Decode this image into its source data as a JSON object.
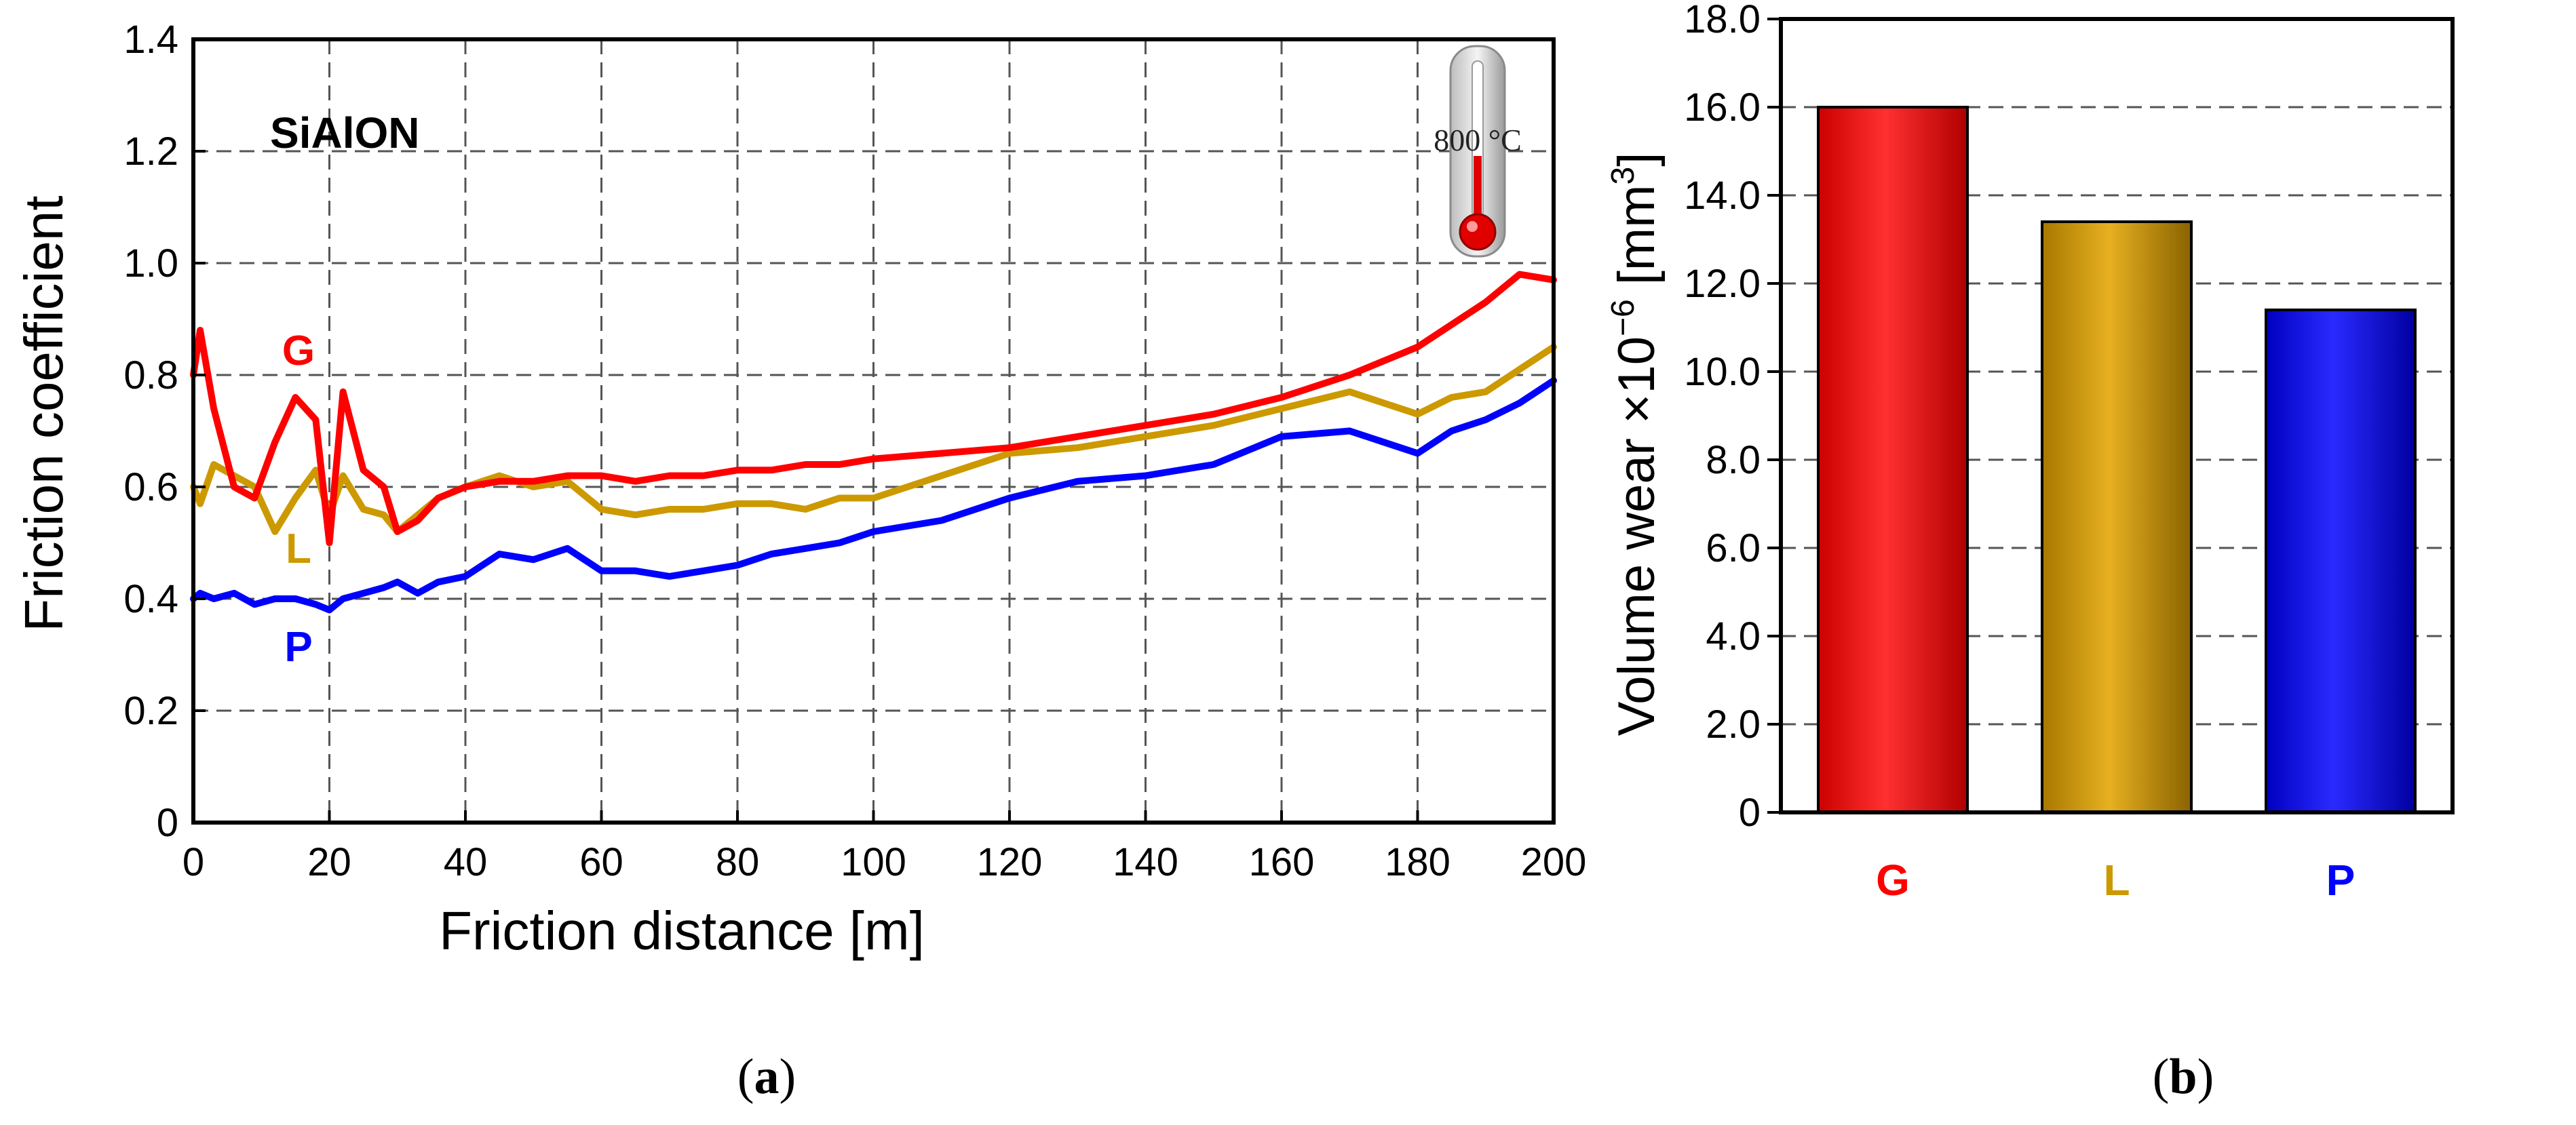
{
  "colors": {
    "G": "#ff0000",
    "L": "#cc9900",
    "P": "#0000ff",
    "axis": "#000000",
    "grid": "#555555"
  },
  "chart_data": [
    {
      "type": "line",
      "panel_label": "(a)",
      "panel_letter": "a",
      "inset_text": "SiAlON",
      "temperature_label": "800 °C",
      "xlabel": "Friction distance [m]",
      "ylabel": "Friction coefficient",
      "xlim": [
        0,
        200
      ],
      "ylim": [
        0,
        1.4
      ],
      "xticks": [
        0,
        20,
        40,
        60,
        80,
        100,
        120,
        140,
        160,
        180,
        200
      ],
      "xtick_labels": [
        "0",
        "20",
        "40",
        "60",
        "80",
        "100",
        "120",
        "140",
        "160",
        "180",
        "200"
      ],
      "yticks": [
        0,
        0.2,
        0.4,
        0.6,
        0.8,
        1.0,
        1.2,
        1.4
      ],
      "ytick_labels": [
        "0",
        "0.2",
        "0.4",
        "0.6",
        "0.8",
        "1.0",
        "1.2",
        "1.4"
      ],
      "grid": true,
      "x": [
        0,
        1,
        3,
        6,
        9,
        12,
        15,
        18,
        20,
        22,
        25,
        28,
        30,
        33,
        36,
        40,
        45,
        50,
        55,
        60,
        65,
        70,
        75,
        80,
        85,
        90,
        95,
        100,
        110,
        120,
        130,
        140,
        150,
        160,
        170,
        180,
        185,
        190,
        195,
        200
      ],
      "series": [
        {
          "name": "G",
          "values": [
            0.8,
            0.88,
            0.74,
            0.6,
            0.58,
            0.68,
            0.76,
            0.72,
            0.5,
            0.77,
            0.63,
            0.6,
            0.52,
            0.54,
            0.58,
            0.6,
            0.61,
            0.61,
            0.62,
            0.62,
            0.61,
            0.62,
            0.62,
            0.63,
            0.63,
            0.64,
            0.64,
            0.65,
            0.66,
            0.67,
            0.69,
            0.71,
            0.73,
            0.76,
            0.8,
            0.85,
            0.89,
            0.93,
            0.98,
            0.97
          ]
        },
        {
          "name": "L",
          "values": [
            0.6,
            0.57,
            0.64,
            0.62,
            0.6,
            0.52,
            0.58,
            0.63,
            0.55,
            0.62,
            0.56,
            0.55,
            0.52,
            0.55,
            0.58,
            0.6,
            0.62,
            0.6,
            0.61,
            0.56,
            0.55,
            0.56,
            0.56,
            0.57,
            0.57,
            0.56,
            0.58,
            0.58,
            0.62,
            0.66,
            0.67,
            0.69,
            0.71,
            0.74,
            0.77,
            0.73,
            0.76,
            0.77,
            0.81,
            0.85
          ]
        },
        {
          "name": "P",
          "values": [
            0.4,
            0.41,
            0.4,
            0.41,
            0.39,
            0.4,
            0.4,
            0.39,
            0.38,
            0.4,
            0.41,
            0.42,
            0.43,
            0.41,
            0.43,
            0.44,
            0.48,
            0.47,
            0.49,
            0.45,
            0.45,
            0.44,
            0.45,
            0.46,
            0.48,
            0.49,
            0.5,
            0.52,
            0.54,
            0.58,
            0.61,
            0.62,
            0.64,
            0.69,
            0.7,
            0.66,
            0.7,
            0.72,
            0.75,
            0.79
          ]
        }
      ],
      "curve_labels": [
        "G",
        "L",
        "P"
      ]
    },
    {
      "type": "bar",
      "panel_label": "(b)",
      "panel_letter": "b",
      "categories": [
        "G",
        "L",
        "P"
      ],
      "values": [
        16.0,
        13.4,
        11.4
      ],
      "ylabel_prefix": "Volume wear ×10",
      "ylabel_exp": "−6",
      "ylabel_unit": " [mm",
      "ylabel_unit_exp": "3",
      "ylabel_close": "]",
      "ylim": [
        0,
        18
      ],
      "yticks": [
        0,
        2,
        4,
        6,
        8,
        10,
        12,
        14,
        16,
        18
      ],
      "ytick_labels": [
        "0",
        "2.0",
        "4.0",
        "6.0",
        "8.0",
        "10.0",
        "12.0",
        "14.0",
        "16.0",
        "18.0"
      ],
      "grid": true
    }
  ]
}
